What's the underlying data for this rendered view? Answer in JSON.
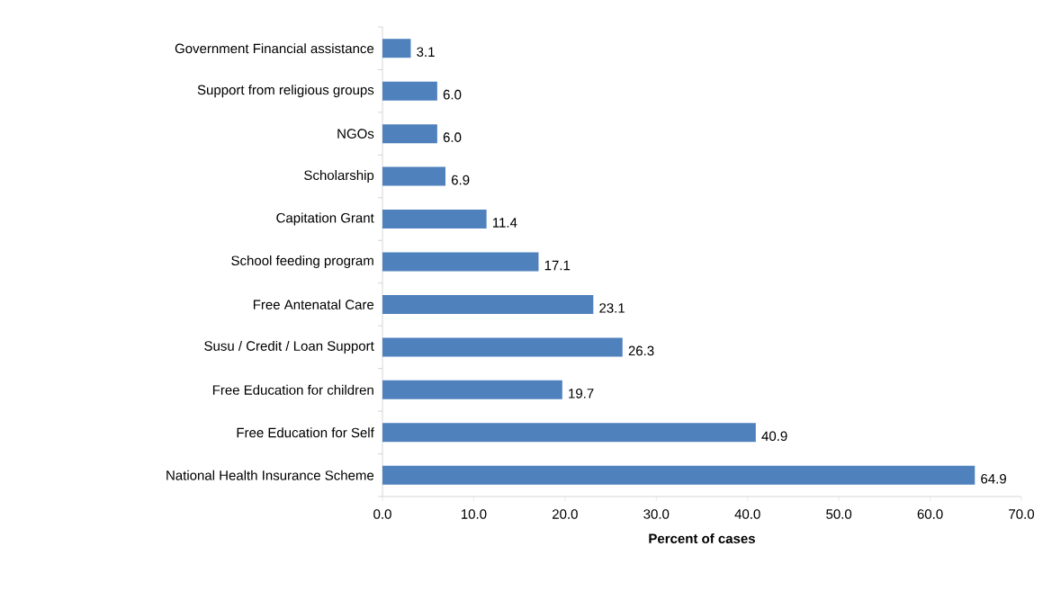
{
  "chart_data": {
    "type": "bar",
    "orientation": "horizontal",
    "xlabel": "Percent of cases",
    "categories": [
      "Government Financial assistance",
      "Support from religious groups",
      "NGOs",
      "Scholarship",
      "Capitation Grant",
      "School feeding program",
      "Free Antenatal Care",
      "Susu / Credit / Loan Support",
      "Free Education for children",
      "Free Education for Self",
      "National Health Insurance Scheme"
    ],
    "values": [
      3.1,
      6.0,
      6.0,
      6.9,
      11.4,
      17.1,
      23.1,
      26.3,
      19.7,
      40.9,
      64.9
    ],
    "value_labels": [
      "3.1",
      "6.0",
      "6.0",
      "6.9",
      "11.4",
      "17.1",
      "23.1",
      "26.3",
      "19.7",
      "40.9",
      "64.9"
    ],
    "color": "#4f81bd",
    "xlim": [
      0,
      70
    ],
    "xticks": [
      {
        "value": 0,
        "label": "0.0"
      },
      {
        "value": 10,
        "label": "10.0"
      },
      {
        "value": 20,
        "label": "20.0"
      },
      {
        "value": 30,
        "label": "30.0"
      },
      {
        "value": 40,
        "label": "40.0"
      },
      {
        "value": 50,
        "label": "50.0"
      },
      {
        "value": 60,
        "label": "60.0"
      },
      {
        "value": 70,
        "label": "70.0"
      }
    ]
  }
}
